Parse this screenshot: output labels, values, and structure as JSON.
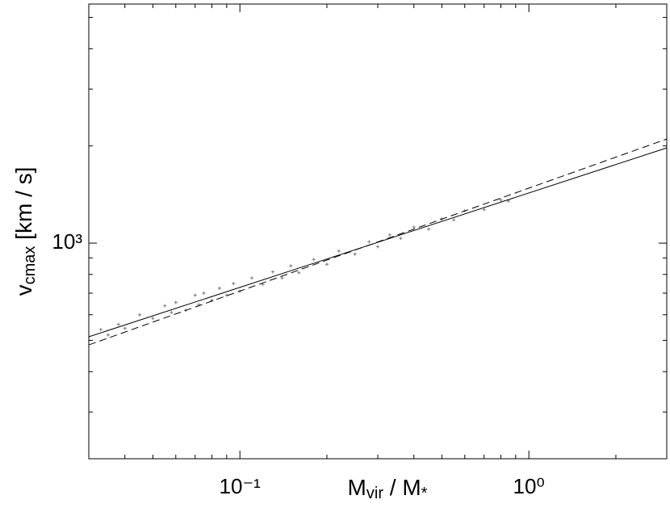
{
  "chart_data": {
    "type": "scatter",
    "xlabel": [
      "M",
      "vir",
      " / M",
      "*"
    ],
    "ylabel": [
      "v",
      "cmax",
      "  [km / s]"
    ],
    "xscale": "log",
    "yscale": "log",
    "xlim": [
      0.03,
      3
    ],
    "ylim": [
      215,
      5500
    ],
    "xticks": [
      {
        "value": 0.1,
        "label": "10⁻¹"
      },
      {
        "value": 1,
        "label": "10⁰"
      }
    ],
    "yticks": [
      {
        "value": 1000,
        "label": "10³"
      }
    ],
    "series": [
      {
        "type": "scatter",
        "color": "#888888",
        "marker": "+",
        "x": [
          0.033,
          0.035,
          0.038,
          0.04,
          0.045,
          0.05,
          0.055,
          0.058,
          0.06,
          0.065,
          0.07,
          0.072,
          0.075,
          0.08,
          0.085,
          0.09,
          0.095,
          0.1,
          0.11,
          0.12,
          0.13,
          0.14,
          0.15,
          0.16,
          0.18,
          0.2,
          0.22,
          0.25,
          0.28,
          0.3,
          0.33,
          0.36,
          0.4,
          0.45,
          0.5,
          0.55,
          0.6,
          0.7,
          0.8,
          0.85
        ],
        "values": [
          540,
          520,
          560,
          545,
          600,
          585,
          640,
          610,
          655,
          620,
          690,
          645,
          700,
          665,
          725,
          690,
          750,
          710,
          780,
          745,
          815,
          780,
          850,
          810,
          890,
          860,
          945,
          925,
          1010,
          975,
          1060,
          1035,
          1120,
          1105,
          1190,
          1180,
          1260,
          1270,
          1360,
          1350
        ]
      },
      {
        "type": "line",
        "color": "#000000",
        "dash": "solid",
        "x": [
          0.03,
          3
        ],
        "values": [
          513,
          1972
        ]
      },
      {
        "type": "line",
        "color": "#000000",
        "dash": "dashed",
        "x": [
          0.03,
          3
        ],
        "values": [
          484,
          2101
        ]
      }
    ]
  }
}
